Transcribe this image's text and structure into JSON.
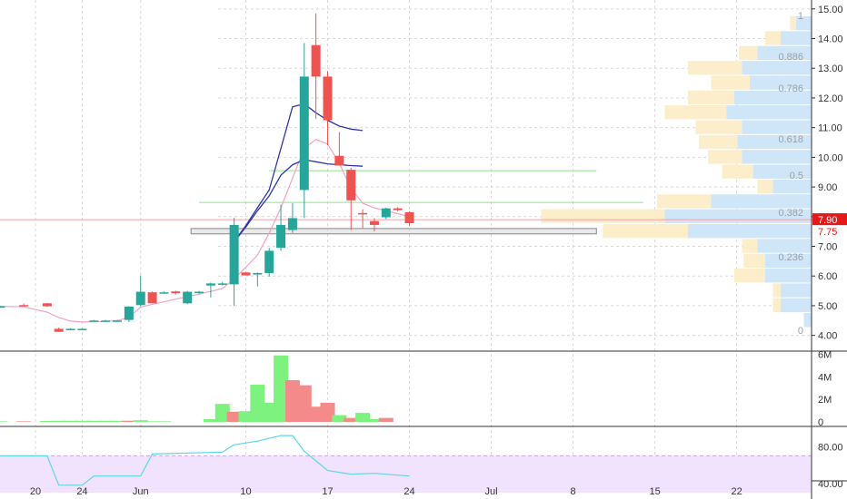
{
  "chart_data": {
    "type": "candlestick",
    "colors": {
      "up": "#26a69a",
      "down": "#ef5350",
      "vol_up": "#7ef27e",
      "vol_down": "#f58a8a",
      "ma_dark": "#2f37a8",
      "ma_light": "#f2a3c2",
      "rsi": "#5dd5ea",
      "rsi_band": "#f1e3fd",
      "hline_green": "#8ee08e",
      "hline_red": "#f5a0a0",
      "grid": "#d9d9d9",
      "vp_up": "#cfe6f8",
      "vp_down": "#fdeecb",
      "last_price_bg": "#e61919",
      "box_fill": "#dcdcdc"
    },
    "price_axis": {
      "ylim": [
        3.5,
        15.3
      ],
      "ticks": [
        "4.00",
        "5.00",
        "6.00",
        "7.00",
        "8.00",
        "9.00",
        "10.00",
        "11.00",
        "12.00",
        "13.00",
        "14.00",
        "15.00"
      ]
    },
    "volume_axis": {
      "ylim": [
        0,
        6.2
      ],
      "ticks": [
        "0",
        "2M",
        "4M",
        "6M"
      ]
    },
    "rsi_axis": {
      "ylim": [
        25,
        100
      ],
      "ticks": [
        "40.00",
        "80.00"
      ],
      "band": [
        30,
        70
      ]
    },
    "time_axis": {
      "ticks": [
        {
          "label": "20",
          "day": 0
        },
        {
          "label": "24",
          "day": 4
        },
        {
          "label": "Jun",
          "day": 9
        },
        {
          "label": "10",
          "day": 18
        },
        {
          "label": "17",
          "day": 25
        },
        {
          "label": "24",
          "day": 32
        },
        {
          "label": "Jul",
          "day": 39
        },
        {
          "label": "8",
          "day": 46
        },
        {
          "label": "15",
          "day": 53
        },
        {
          "label": "22",
          "day": 60
        }
      ]
    },
    "candles": [
      {
        "day": -3,
        "o": 4.97,
        "h": 4.99,
        "l": 4.95,
        "c": 4.98
      },
      {
        "day": -1,
        "o": 5.02,
        "h": 5.07,
        "l": 4.98,
        "c": 5.0
      },
      {
        "day": 1,
        "o": 5.08,
        "h": 5.09,
        "l": 4.96,
        "c": 4.98
      },
      {
        "day": 2,
        "o": 4.22,
        "h": 4.26,
        "l": 4.12,
        "c": 4.12
      },
      {
        "day": 3,
        "o": 4.22,
        "h": 4.24,
        "l": 4.2,
        "c": 4.22
      },
      {
        "day": 4,
        "o": 4.22,
        "h": 4.24,
        "l": 4.2,
        "c": 4.22
      },
      {
        "day": 5,
        "o": 4.5,
        "h": 4.52,
        "l": 4.47,
        "c": 4.5
      },
      {
        "day": 6,
        "o": 4.5,
        "h": 4.52,
        "l": 4.47,
        "c": 4.5
      },
      {
        "day": 7,
        "o": 4.5,
        "h": 4.52,
        "l": 4.47,
        "c": 4.5
      },
      {
        "day": 8,
        "o": 4.52,
        "h": 4.98,
        "l": 4.45,
        "c": 4.97
      },
      {
        "day": 9,
        "o": 5.02,
        "h": 6.02,
        "l": 4.98,
        "c": 5.47
      },
      {
        "day": 10,
        "o": 5.45,
        "h": 5.48,
        "l": 5.08,
        "c": 5.08
      },
      {
        "day": 11,
        "o": 5.45,
        "h": 5.48,
        "l": 5.4,
        "c": 5.45
      },
      {
        "day": 12,
        "o": 5.48,
        "h": 5.5,
        "l": 5.38,
        "c": 5.42
      },
      {
        "day": 13,
        "o": 5.08,
        "h": 5.5,
        "l": 5.05,
        "c": 5.47
      },
      {
        "day": 14,
        "o": 5.45,
        "h": 5.5,
        "l": 5.4,
        "c": 5.47
      },
      {
        "day": 15,
        "o": 5.68,
        "h": 5.78,
        "l": 5.28,
        "c": 5.75
      },
      {
        "day": 16,
        "o": 5.72,
        "h": 5.8,
        "l": 5.68,
        "c": 5.75
      },
      {
        "day": 17,
        "o": 5.72,
        "h": 7.96,
        "l": 5.0,
        "c": 7.72
      },
      {
        "day": 18,
        "o": 6.12,
        "h": 6.14,
        "l": 6.02,
        "c": 6.02
      },
      {
        "day": 19,
        "o": 6.05,
        "h": 6.12,
        "l": 5.65,
        "c": 6.1
      },
      {
        "day": 20,
        "o": 6.1,
        "h": 6.95,
        "l": 5.98,
        "c": 6.85
      },
      {
        "day": 21,
        "o": 6.95,
        "h": 8.4,
        "l": 6.85,
        "c": 7.72
      },
      {
        "day": 22,
        "o": 7.55,
        "h": 8.45,
        "l": 7.45,
        "c": 7.95
      },
      {
        "day": 23,
        "o": 8.9,
        "h": 13.85,
        "l": 7.95,
        "c": 12.72
      },
      {
        "day": 24,
        "o": 13.78,
        "h": 14.85,
        "l": 11.3,
        "c": 12.72
      },
      {
        "day": 25,
        "o": 12.72,
        "h": 12.9,
        "l": 10.4,
        "c": 11.25
      },
      {
        "day": 26,
        "o": 10.05,
        "h": 10.85,
        "l": 9.72,
        "c": 9.72
      },
      {
        "day": 27,
        "o": 9.58,
        "h": 9.65,
        "l": 7.55,
        "c": 8.55
      },
      {
        "day": 28,
        "o": 8.12,
        "h": 8.25,
        "l": 7.6,
        "c": 8.1
      },
      {
        "day": 29,
        "o": 7.85,
        "h": 7.95,
        "l": 7.5,
        "c": 7.72
      },
      {
        "day": 30,
        "o": 7.98,
        "h": 8.3,
        "l": 7.92,
        "c": 8.28
      },
      {
        "day": 31,
        "o": 8.28,
        "h": 8.32,
        "l": 8.18,
        "c": 8.22
      },
      {
        "day": 32,
        "o": 8.15,
        "h": 8.18,
        "l": 7.7,
        "c": 7.78
      }
    ],
    "volume": [
      {
        "day": -3,
        "v": 0.05,
        "dir": "up"
      },
      {
        "day": -1,
        "v": 0.05,
        "dir": "down"
      },
      {
        "day": 1,
        "v": 0.08,
        "dir": "up"
      },
      {
        "day": 2,
        "v": 0.1,
        "dir": "up"
      },
      {
        "day": 3,
        "v": 0.1,
        "dir": "up"
      },
      {
        "day": 4,
        "v": 0.1,
        "dir": "up"
      },
      {
        "day": 5,
        "v": 0.1,
        "dir": "up"
      },
      {
        "day": 6,
        "v": 0.1,
        "dir": "up"
      },
      {
        "day": 7,
        "v": 0.1,
        "dir": "up"
      },
      {
        "day": 8,
        "v": 0.1,
        "dir": "down"
      },
      {
        "day": 9,
        "v": 0.15,
        "dir": "up"
      },
      {
        "day": 10,
        "v": 0.05,
        "dir": "up"
      },
      {
        "day": 11,
        "v": 0.05,
        "dir": "up"
      },
      {
        "day": 15,
        "v": 0.25,
        "dir": "up"
      },
      {
        "day": 16,
        "v": 1.6,
        "dir": "up"
      },
      {
        "day": 17,
        "v": 0.9,
        "dir": "down"
      },
      {
        "day": 18,
        "v": 0.95,
        "dir": "up"
      },
      {
        "day": 19,
        "v": 3.3,
        "dir": "up"
      },
      {
        "day": 20,
        "v": 1.7,
        "dir": "up"
      },
      {
        "day": 21,
        "v": 5.9,
        "dir": "up"
      },
      {
        "day": 22,
        "v": 3.7,
        "dir": "down"
      },
      {
        "day": 23,
        "v": 3.25,
        "dir": "down"
      },
      {
        "day": 24,
        "v": 1.35,
        "dir": "down"
      },
      {
        "day": 25,
        "v": 1.7,
        "dir": "down"
      },
      {
        "day": 26,
        "v": 0.6,
        "dir": "up"
      },
      {
        "day": 27,
        "v": 0.35,
        "dir": "down"
      },
      {
        "day": 28,
        "v": 0.8,
        "dir": "up"
      },
      {
        "day": 29,
        "v": 0.25,
        "dir": "up"
      },
      {
        "day": 30,
        "v": 0.35,
        "dir": "down"
      }
    ],
    "ma_dark_1": [
      [
        17,
        7.15
      ],
      [
        18,
        7.7
      ],
      [
        19,
        8.3
      ],
      [
        20,
        8.9
      ],
      [
        21,
        10.3
      ],
      [
        22,
        11.7
      ],
      [
        23,
        11.8
      ],
      [
        24,
        11.5
      ],
      [
        25,
        11.25
      ],
      [
        26,
        11.05
      ],
      [
        27,
        10.95
      ],
      [
        28,
        10.9
      ]
    ],
    "ma_dark_2": [
      [
        17,
        7.15
      ],
      [
        18,
        7.65
      ],
      [
        19,
        8.2
      ],
      [
        20,
        8.7
      ],
      [
        21,
        9.4
      ],
      [
        22,
        9.75
      ],
      [
        23,
        9.92
      ],
      [
        24,
        9.85
      ],
      [
        25,
        9.78
      ],
      [
        26,
        9.75
      ],
      [
        27,
        9.72
      ],
      [
        28,
        9.7
      ]
    ],
    "ma_pink": [
      [
        -3,
        4.98
      ],
      [
        -1,
        4.96
      ],
      [
        1,
        4.78
      ],
      [
        2,
        4.6
      ],
      [
        3,
        4.48
      ],
      [
        4,
        4.45
      ],
      [
        5,
        4.46
      ],
      [
        6,
        4.47
      ],
      [
        7,
        4.5
      ],
      [
        8,
        4.6
      ],
      [
        9,
        4.95
      ],
      [
        10,
        5.05
      ],
      [
        11,
        5.13
      ],
      [
        12,
        5.22
      ],
      [
        13,
        5.3
      ],
      [
        14,
        5.39
      ],
      [
        15,
        5.48
      ],
      [
        16,
        5.58
      ],
      [
        17,
        5.9
      ],
      [
        18,
        6.3
      ],
      [
        19,
        6.7
      ],
      [
        20,
        7.45
      ],
      [
        21,
        8.3
      ],
      [
        22,
        9.3
      ],
      [
        23,
        10.3
      ],
      [
        24,
        10.6
      ],
      [
        25,
        10.45
      ],
      [
        26,
        9.8
      ],
      [
        27,
        8.95
      ],
      [
        28,
        8.45
      ],
      [
        29,
        8.3
      ],
      [
        30,
        8.2
      ],
      [
        31,
        8.1
      ],
      [
        32,
        8.0
      ]
    ],
    "rsi": [
      [
        -3,
        70
      ],
      [
        1,
        70
      ],
      [
        2,
        38
      ],
      [
        4,
        38
      ],
      [
        5,
        48
      ],
      [
        9,
        48
      ],
      [
        10,
        72
      ],
      [
        16,
        74
      ],
      [
        17,
        82
      ],
      [
        19,
        86
      ],
      [
        21,
        92
      ],
      [
        22,
        92
      ],
      [
        23,
        75
      ],
      [
        25,
        54
      ],
      [
        27,
        50
      ],
      [
        29,
        51
      ],
      [
        32,
        48
      ]
    ],
    "horizontal_lines": [
      {
        "price": 9.55,
        "from_day": 20,
        "to_day": 48,
        "color": "hline_green"
      },
      {
        "price": 8.48,
        "from_day": 14,
        "to_day": 52,
        "color": "hline_green"
      },
      {
        "price": 7.9,
        "from_day": -4,
        "to_day": 68,
        "color": "hline_red"
      }
    ],
    "box": {
      "day_from": 13,
      "day_to": 48,
      "price_top": 7.6,
      "price_bottom": 7.42
    },
    "fib_levels": [
      {
        "label": "1",
        "price": 14.78
      },
      {
        "label": "0.886",
        "price": 13.4
      },
      {
        "label": "0.786",
        "price": 12.33
      },
      {
        "label": "0.618",
        "price": 10.62
      },
      {
        "label": "0.5",
        "price": 9.4
      },
      {
        "label": "0.382",
        "price": 8.15
      },
      {
        "label": "0.236",
        "price": 6.65
      },
      {
        "label": "0",
        "price": 4.18
      }
    ],
    "volume_profile": [
      {
        "price": 14.5,
        "up": 0.1,
        "down": 0.04
      },
      {
        "price": 14.0,
        "up": 0.2,
        "down": 0.1
      },
      {
        "price": 13.5,
        "up": 0.35,
        "down": 0.12
      },
      {
        "price": 13.0,
        "up": 0.45,
        "down": 0.35
      },
      {
        "price": 12.5,
        "up": 0.4,
        "down": 0.25
      },
      {
        "price": 12.0,
        "up": 0.5,
        "down": 0.3
      },
      {
        "price": 11.5,
        "up": 0.55,
        "down": 0.4
      },
      {
        "price": 11.0,
        "up": 0.45,
        "down": 0.3
      },
      {
        "price": 10.5,
        "up": 0.48,
        "down": 0.25
      },
      {
        "price": 10.0,
        "up": 0.45,
        "down": 0.22
      },
      {
        "price": 9.5,
        "up": 0.38,
        "down": 0.2
      },
      {
        "price": 9.0,
        "up": 0.25,
        "down": 0.1
      },
      {
        "price": 8.5,
        "up": 0.65,
        "down": 0.35
      },
      {
        "price": 8.0,
        "up": 0.95,
        "down": 0.8
      },
      {
        "price": 7.5,
        "up": 0.8,
        "down": 0.55
      },
      {
        "price": 7.0,
        "up": 0.35,
        "down": 0.1
      },
      {
        "price": 6.5,
        "up": 0.3,
        "down": 0.14
      },
      {
        "price": 6.0,
        "up": 0.3,
        "down": 0.2
      },
      {
        "price": 5.5,
        "up": 0.2,
        "down": 0.05
      },
      {
        "price": 5.0,
        "up": 0.2,
        "down": 0.05
      },
      {
        "price": 4.5,
        "up": 0.05,
        "down": 0.0
      }
    ],
    "price_labels": [
      {
        "text": "7.90",
        "price": 7.9,
        "bg": "#e61919",
        "fg": "#ffffff"
      },
      {
        "text": "7.75",
        "price": 7.5,
        "bg": "#ffffff",
        "fg": "#e61919"
      }
    ]
  }
}
